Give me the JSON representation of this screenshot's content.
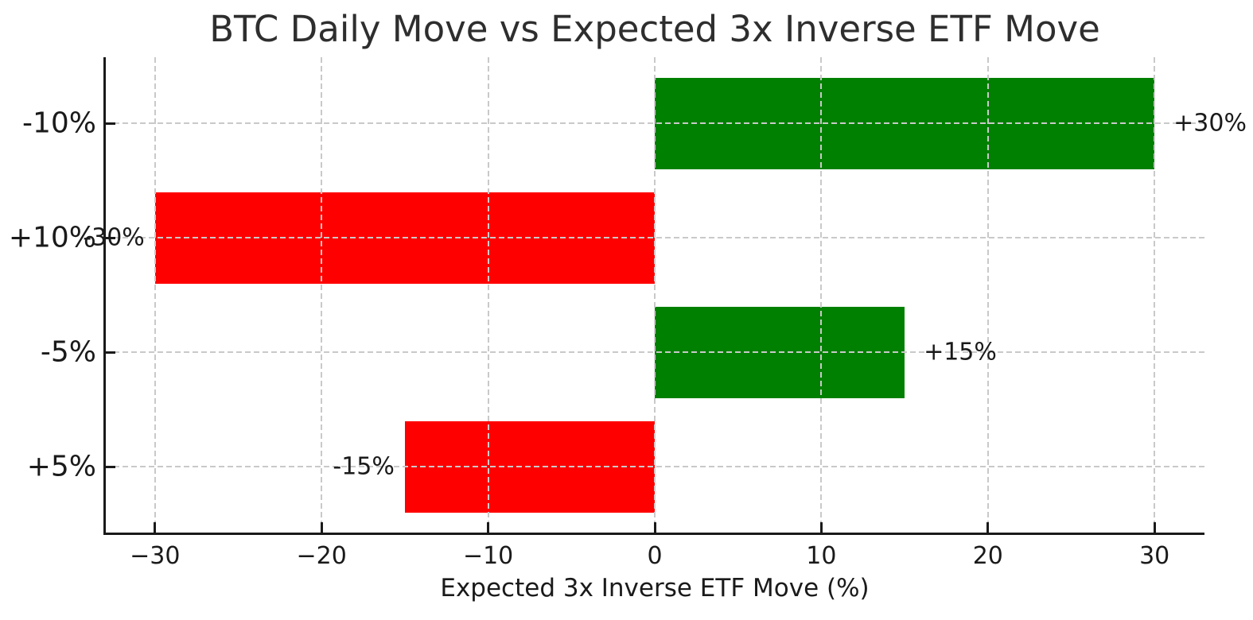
{
  "chart_data": {
    "type": "bar",
    "orientation": "horizontal",
    "title": "BTC Daily Move vs Expected 3x Inverse ETF Move",
    "xlabel": "Expected 3x Inverse ETF Move (%)",
    "ylabel": "",
    "categories": [
      "-10%",
      "+10%",
      "-5%",
      "+5%"
    ],
    "values": [
      30,
      -30,
      15,
      -15
    ],
    "bar_labels": [
      "+30%",
      "-30%",
      "+15%",
      "-15%"
    ],
    "bar_colors": [
      "#008000",
      "#ff0000",
      "#008000",
      "#ff0000"
    ],
    "positive_color": "#008000",
    "negative_color": "#ff0000",
    "xticks": [
      -30,
      -20,
      -10,
      0,
      10,
      20,
      30
    ],
    "xtick_labels": [
      "−30",
      "−20",
      "−10",
      "0",
      "10",
      "20",
      "30"
    ],
    "xlim": [
      -33,
      33
    ],
    "grid": true,
    "grid_style": "dashed",
    "grid_color": "#c9c9c9",
    "background": "#ffffff",
    "text_color": "#1a1a1a",
    "legend": null
  }
}
